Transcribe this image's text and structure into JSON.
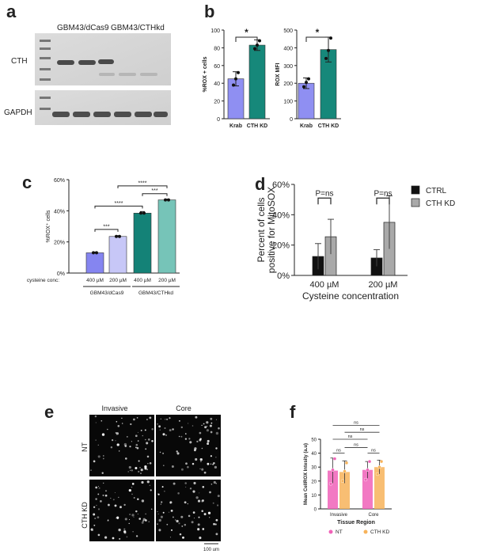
{
  "panel_letters": {
    "a": "a",
    "b": "b",
    "c": "c",
    "d": "d",
    "e": "e",
    "f": "f"
  },
  "panel_a": {
    "group_labels": [
      "GBM43/dCas9",
      "GBM43/CTHkd"
    ],
    "row_labels": [
      "CTH",
      "GAPDH"
    ]
  },
  "panel_e": {
    "columns": [
      "Invasive",
      "Core"
    ],
    "rows": [
      "NT",
      "CTH KD"
    ],
    "scale_bar": "100 um"
  },
  "colors": {
    "krab": "#8f8ff2",
    "cth_kd": "#16887a",
    "c_bars": [
      "#8585f0",
      "#c7c7f7",
      "#148277",
      "#76c4b8"
    ],
    "ctrl": "#111111",
    "cthkd_d": "#a9a9a9",
    "nt": "#f062b8",
    "cthkd_f": "#f7b35a"
  },
  "chart_data": [
    {
      "type": "bar",
      "panel": "b-left",
      "categories": [
        "Krab",
        "CTH KD"
      ],
      "values": [
        45,
        83
      ],
      "errors": [
        8,
        6
      ],
      "points": [
        [
          38,
          45,
          52
        ],
        [
          79,
          83,
          88
        ]
      ],
      "ylabel": "%ROX + cells",
      "ylim": [
        0,
        100
      ],
      "yticks": [
        "0",
        "20",
        "40",
        "60",
        "80",
        "100"
      ],
      "significance": "*"
    },
    {
      "type": "bar",
      "panel": "b-right",
      "categories": [
        "Krab",
        "CTH KD"
      ],
      "values": [
        200,
        390
      ],
      "errors": [
        30,
        70
      ],
      "points": [
        [
          180,
          205,
          225
        ],
        [
          340,
          385,
          455
        ]
      ],
      "ylabel": "ROX MFI",
      "ylim": [
        0,
        500
      ],
      "yticks": [
        "0",
        "100",
        "200",
        "300",
        "400",
        "500"
      ],
      "significance": "*"
    },
    {
      "type": "bar",
      "panel": "c",
      "categories": [
        "400 µM",
        "200 µM",
        "400 µM",
        "200 µM"
      ],
      "values": [
        13,
        23.5,
        38.5,
        47
      ],
      "errors": [
        0.5,
        0.5,
        1,
        0.5
      ],
      "ylabel": "%ROX⁺ cells",
      "ylim": [
        0,
        60
      ],
      "yticks": [
        "0%",
        "20%",
        "40%",
        "60%"
      ],
      "xlabel_prefix": "cysteine conc:",
      "groups": [
        "GBM43/dCas9",
        "GBM43/CTHkd"
      ],
      "significance": [
        "***",
        "****",
        "***",
        "****"
      ]
    },
    {
      "type": "bar",
      "panel": "d",
      "categories": [
        "400 µM",
        "200 µM"
      ],
      "series": [
        {
          "name": "CTRL",
          "values": [
            12.5,
            11.5
          ],
          "errors": [
            8.5,
            5.5
          ]
        },
        {
          "name": "CTH KD",
          "values": [
            25.5,
            35
          ],
          "errors": [
            11.5,
            17.5
          ]
        }
      ],
      "xlabel": "Cysteine concentration",
      "ylabel": "Percent of cells positive for MitoSOX",
      "ylabel_lines": [
        "Percent of cells",
        "positive for MitoSOX"
      ],
      "ylim": [
        0,
        60
      ],
      "yticks": [
        "0%",
        "20%",
        "40%",
        "60%"
      ],
      "significance": [
        "P=ns",
        "P=ns"
      ],
      "legend": "right"
    },
    {
      "type": "bar",
      "panel": "f",
      "categories": [
        "Invasive",
        "Core"
      ],
      "series": [
        {
          "name": "NT",
          "values": [
            27.5,
            28
          ],
          "errors": [
            9,
            6
          ],
          "points": [
            [
              18,
              28,
              36
            ],
            [
              21,
              28,
              34
            ]
          ]
        },
        {
          "name": "CTH KD",
          "values": [
            26.5,
            30
          ],
          "errors": [
            8,
            5
          ],
          "points": [
            [
              20,
              27,
              33
            ],
            [
              25,
              30,
              34
            ]
          ]
        }
      ],
      "xlabel": "Tissue Region",
      "ylabel": "Mean CellROX Intesity (a.u)",
      "ylim": [
        0,
        50
      ],
      "yticks": [
        "0",
        "10",
        "20",
        "30",
        "40",
        "50"
      ],
      "significance": [
        "ns",
        "ns",
        "ns",
        "ns",
        "ns",
        "ns"
      ],
      "legend": "bottom"
    }
  ]
}
